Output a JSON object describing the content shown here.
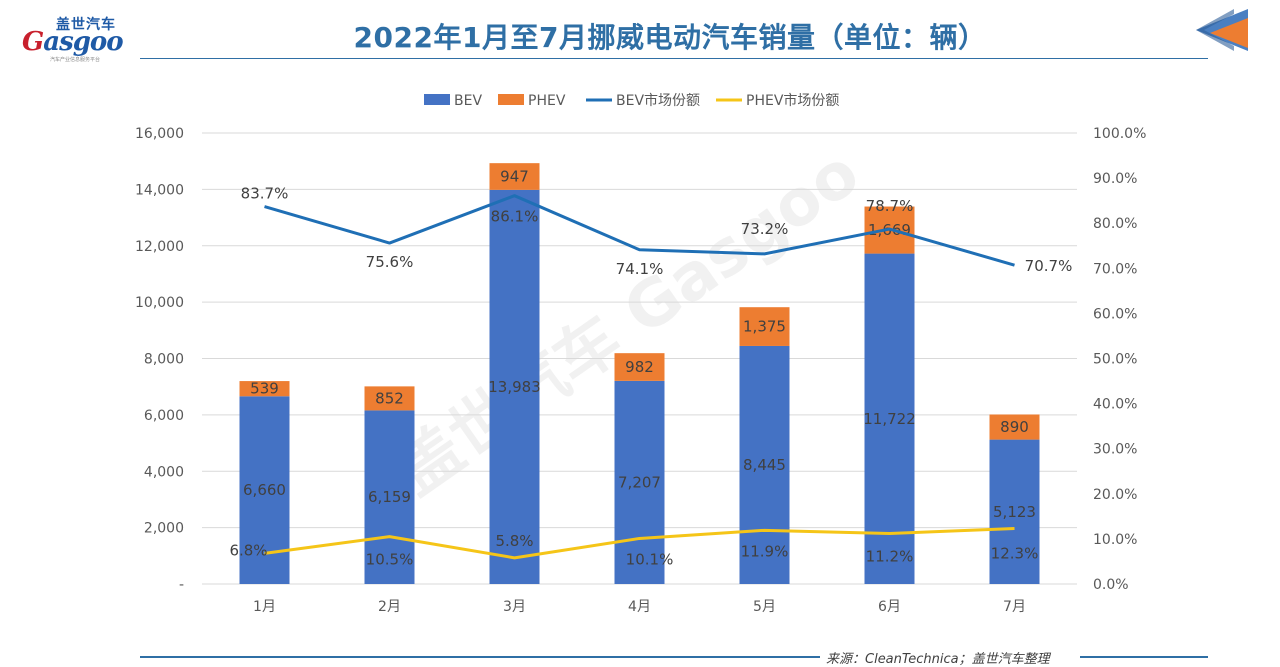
{
  "header": {
    "logo_cn": "盖世汽车",
    "logo_en_first": "G",
    "logo_en_rest": "asgoo",
    "logo_sub": "汽车产业信息服务平台",
    "title": "2022年1月至7月挪威电动汽车销量（单位：辆）"
  },
  "footer": {
    "source": "来源：CleanTechnica；盖世汽车整理"
  },
  "watermark": "盖世汽车 Gasgoo",
  "colors": {
    "bev": "#4472c4",
    "phev": "#ed7d31",
    "bev_share": "#1f6fb5",
    "phev_share": "#f5c518",
    "title": "#2f6fa5"
  },
  "chart_data": {
    "type": "bar",
    "stacked": true,
    "categories": [
      "1月",
      "2月",
      "3月",
      "4月",
      "5月",
      "6月",
      "7月"
    ],
    "series": [
      {
        "name": "BEV",
        "type": "bar",
        "axis": "left",
        "values": [
          6660,
          6159,
          13983,
          7207,
          8445,
          11722,
          5123
        ],
        "labels": [
          "6,660",
          "6,159",
          "13,983",
          "7,207",
          "8,445",
          "11,722",
          "5,123"
        ]
      },
      {
        "name": "PHEV",
        "type": "bar",
        "axis": "left",
        "values": [
          539,
          852,
          947,
          982,
          1375,
          1669,
          890
        ],
        "labels": [
          "539",
          "852",
          "947",
          "982",
          "1,375",
          "1,669",
          "890"
        ]
      },
      {
        "name": "BEV市场份额",
        "type": "line",
        "axis": "right",
        "values": [
          83.7,
          75.6,
          86.1,
          74.1,
          73.2,
          78.7,
          70.7
        ],
        "labels": [
          "83.7%",
          "75.6%",
          "86.1%",
          "74.1%",
          "73.2%",
          "78.7%",
          "70.7%"
        ]
      },
      {
        "name": "PHEV市场份额",
        "type": "line",
        "axis": "right",
        "values": [
          6.8,
          10.5,
          5.8,
          10.1,
          11.9,
          11.2,
          12.3
        ],
        "labels": [
          "6.8%",
          "10.5%",
          "5.8%",
          "10.1%",
          "11.9%",
          "11.2%",
          "12.3%"
        ]
      }
    ],
    "y_left": {
      "min": 0,
      "max": 16000,
      "ticks": [
        "-",
        "2,000",
        "4,000",
        "6,000",
        "8,000",
        "10,000",
        "12,000",
        "14,000",
        "16,000"
      ]
    },
    "y_right": {
      "min": 0,
      "max": 100,
      "ticks": [
        "0.0%",
        "10.0%",
        "20.0%",
        "30.0%",
        "40.0%",
        "50.0%",
        "60.0%",
        "70.0%",
        "80.0%",
        "90.0%",
        "100.0%"
      ]
    },
    "grid": true,
    "legend": "top-center"
  }
}
